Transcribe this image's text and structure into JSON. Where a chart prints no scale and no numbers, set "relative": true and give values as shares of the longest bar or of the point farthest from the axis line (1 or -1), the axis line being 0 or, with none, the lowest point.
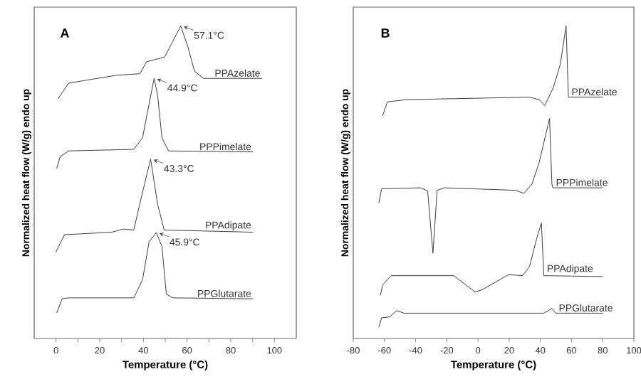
{
  "chart_data": [
    {
      "type": "line",
      "title": "A",
      "xlabel": "Temperature (°C)",
      "ylabel": "Normalized heat flow (W/g) endo up",
      "relative": true,
      "xlim": [
        -10,
        110
      ],
      "xticks": [
        0,
        {
          "value": 10,
          "label": null
        },
        20,
        {
          "value": 30,
          "label": null
        },
        40,
        {
          "value": 50,
          "label": null
        },
        60,
        {
          "value": 70,
          "label": null
        },
        80,
        {
          "value": 90,
          "label": null
        },
        100
      ],
      "series": [
        {
          "name": "PPAzelate",
          "color": "#3c3c3c",
          "x": [
            0.9,
            5.8,
            27.7,
            38.4,
            41.4,
            49.7,
            57.1,
            60.4,
            63.4,
            67.5,
            94.3
          ],
          "values": [
            0.767,
            0.817,
            0.842,
            0.847,
            0.885,
            0.9,
            1,
            0.932,
            0.855,
            0.832,
            0.832
          ]
        },
        {
          "name": "PPPimelate",
          "color": "#3c3c3c",
          "x": [
            0.3,
            1.9,
            5.8,
            35.6,
            39.6,
            44.9,
            46.5,
            48.5,
            51.5,
            90.2
          ],
          "values": [
            0.544,
            0.582,
            0.6,
            0.605,
            0.642,
            0.832,
            0.779,
            0.642,
            0.6,
            0.597
          ]
        },
        {
          "name": "PPAdipate",
          "color": "#3c3c3c",
          "x": [
            -0.1,
            3.9,
            25.7,
            30.7,
            35.6,
            38.6,
            43.3,
            46.5,
            49.5,
            90.2
          ],
          "values": [
            0.276,
            0.332,
            0.34,
            0.35,
            0.347,
            0.438,
            0.574,
            0.43,
            0.347,
            0.34
          ]
        },
        {
          "name": "PPGlutarate",
          "color": "#3c3c3c",
          "x": [
            0.3,
            2.8,
            5.8,
            35.6,
            39.6,
            42.6,
            45.9,
            48.5,
            50.5,
            53.5,
            90.2
          ],
          "values": [
            0.082,
            0.127,
            0.13,
            0.13,
            0.188,
            0.309,
            0.339,
            0.294,
            0.142,
            0.13,
            0.127
          ]
        }
      ],
      "annotations": [
        {
          "text": "57.1°C",
          "x": 57.1,
          "y": 1
        },
        {
          "text": "44.9°C",
          "x": 44.9,
          "y": 0.832
        },
        {
          "text": "43.3°C",
          "x": 43.3,
          "y": 0.574
        },
        {
          "text": "45.9°C",
          "x": 45.9,
          "y": 0.339
        }
      ]
    },
    {
      "type": "line",
      "title": "B",
      "xlabel": "Temperature (°C)",
      "ylabel": "Normalized heat flow (W/g) endo up",
      "relative": true,
      "xlim": [
        -80,
        100
      ],
      "xticks": [
        -80,
        -60,
        -40,
        -20,
        0,
        20,
        40,
        60,
        80,
        100
      ],
      "series": [
        {
          "name": "PPAzelate",
          "color": "#3c3c3c",
          "x": [
            -61.2,
            -58.1,
            -46,
            33.1,
            39.2,
            42.8,
            48.3,
            52.8,
            56.5,
            58,
            80.2
          ],
          "values": [
            0.712,
            0.757,
            0.764,
            0.772,
            0.764,
            0.745,
            0.802,
            0.877,
            1,
            0.772,
            0.772
          ]
        },
        {
          "name": "PPPimelate",
          "color": "#3c3c3c",
          "x": [
            -63.6,
            -61.8,
            -36.8,
            -32.3,
            -28.9,
            -26.2,
            -21.6,
            24,
            29.5,
            34.6,
            39.2,
            45.9,
            47.4,
            48,
            80.2
          ],
          "values": [
            0.434,
            0.479,
            0.482,
            0.472,
            0.273,
            0.474,
            0.482,
            0.474,
            0.464,
            0.494,
            0.562,
            0.704,
            0.494,
            0.482,
            0.482
          ]
        },
        {
          "name": "PPAdipate",
          "color": "#3c3c3c",
          "x": [
            -62.6,
            -61.2,
            -55.7,
            -15.6,
            -1.9,
            2.7,
            19.5,
            28.6,
            33.1,
            37.7,
            40.7,
            42.2,
            80.2
          ],
          "values": [
            0.138,
            0.171,
            0.201,
            0.201,
            0.149,
            0.156,
            0.204,
            0.201,
            0.231,
            0.321,
            0.369,
            0.201,
            0.198
          ]
        },
        {
          "name": "PPGlutarate",
          "color": "#3c3c3c",
          "x": [
            -63.6,
            -61.8,
            -56.7,
            -52.1,
            -47.5,
            42.2,
            47.4,
            49.8,
            80.2
          ],
          "values": [
            0.036,
            0.066,
            0.069,
            0.089,
            0.081,
            0.081,
            0.096,
            0.081,
            0.081
          ]
        }
      ]
    }
  ]
}
